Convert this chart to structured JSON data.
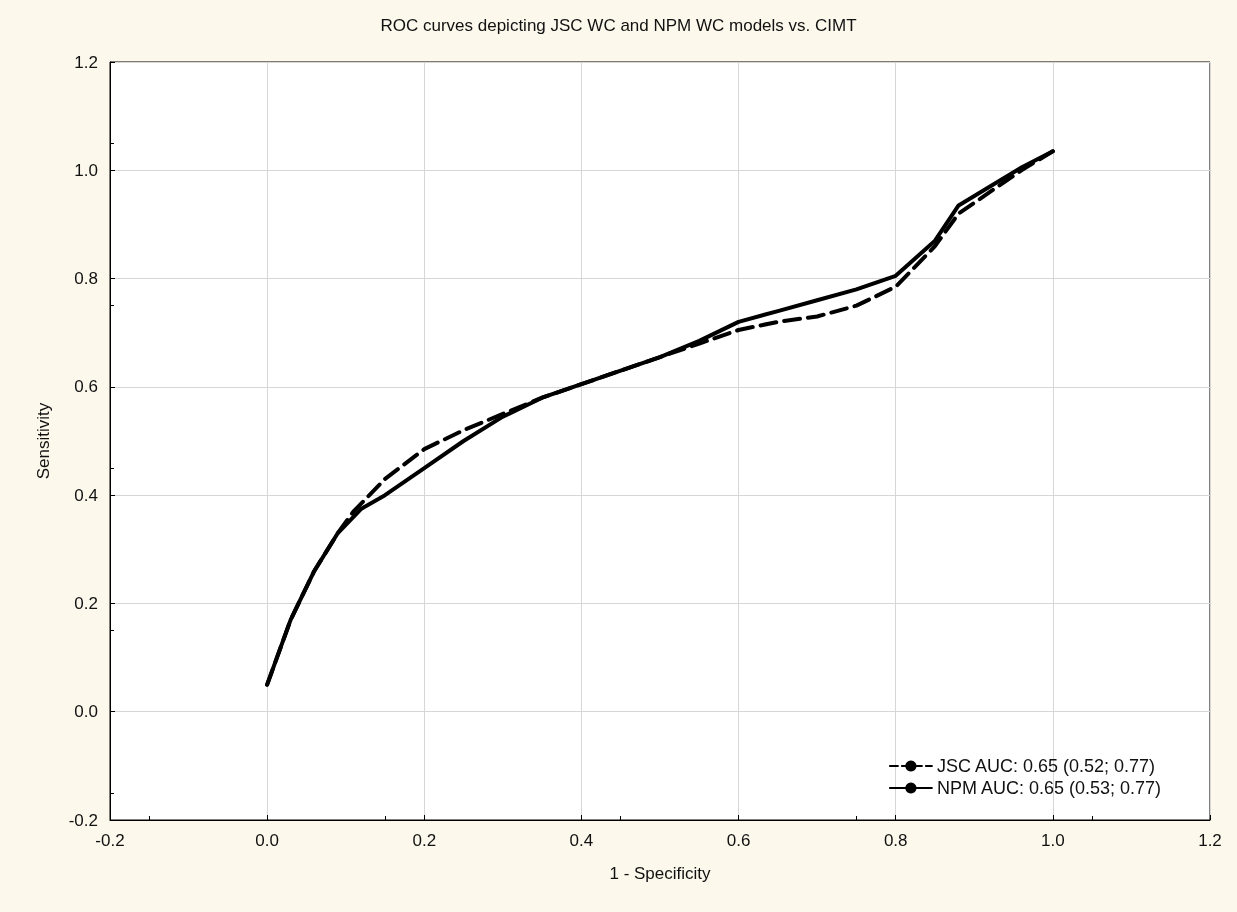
{
  "chart_data": {
    "type": "line",
    "title": "ROC curves depicting JSC WC and NPM WC models vs. CIMT",
    "xlabel": "1 - Specificity",
    "ylabel": "Sensitivity",
    "xlim": [
      -0.2,
      1.2
    ],
    "xticks": [
      -0.2,
      {
        "value": 0,
        "label": "0.0"
      },
      0.2,
      0.4,
      0.6,
      0.8,
      {
        "value": 1,
        "label": "1.0"
      },
      1.2
    ],
    "ylim": [
      -0.2,
      1.2
    ],
    "yticks": [
      -0.2,
      {
        "value": 0,
        "label": "0.0"
      },
      0.2,
      0.4,
      0.6,
      0.8,
      {
        "value": 1,
        "label": "1.0"
      },
      1.2
    ],
    "grid": true,
    "legend": "bottom right",
    "marker": "none",
    "series": [
      {
        "name": "JSC AUC: 0.65 (0.52; 0.77)",
        "color": "#000000",
        "line_style": "dashed",
        "x": [
          0,
          0.03,
          0.06,
          0.09,
          0.11,
          0.15,
          0.2,
          0.25,
          0.3,
          0.35,
          0.4,
          0.45,
          0.5,
          0.55,
          0.6,
          0.65,
          0.7,
          0.75,
          0.8,
          0.85,
          0.88,
          0.92,
          0.96,
          1.0
        ],
        "values": [
          0.05,
          0.17,
          0.26,
          0.33,
          0.37,
          0.43,
          0.485,
          0.52,
          0.55,
          0.58,
          0.605,
          0.63,
          0.655,
          0.68,
          0.705,
          0.72,
          0.73,
          0.75,
          0.785,
          0.86,
          0.92,
          0.96,
          1.0,
          1.035
        ]
      },
      {
        "name": "NPM AUC: 0.65 (0.53; 0.77)",
        "color": "#000000",
        "line_style": "solid",
        "x": [
          0,
          0.03,
          0.06,
          0.09,
          0.12,
          0.15,
          0.2,
          0.25,
          0.3,
          0.35,
          0.4,
          0.45,
          0.5,
          0.55,
          0.6,
          0.65,
          0.7,
          0.75,
          0.8,
          0.85,
          0.88,
          0.92,
          0.96,
          1.0
        ],
        "values": [
          0.05,
          0.17,
          0.26,
          0.33,
          0.375,
          0.4,
          0.45,
          0.5,
          0.545,
          0.58,
          0.605,
          0.63,
          0.655,
          0.685,
          0.72,
          0.74,
          0.76,
          0.78,
          0.805,
          0.87,
          0.935,
          0.97,
          1.005,
          1.035
        ]
      }
    ]
  }
}
